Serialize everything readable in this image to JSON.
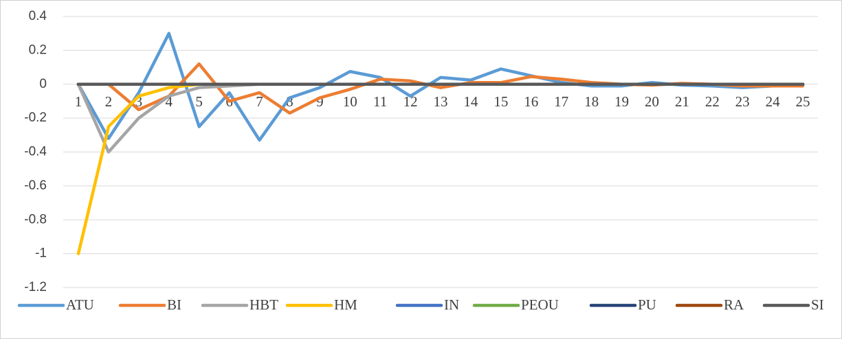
{
  "chart_data": {
    "type": "line",
    "categories": [
      "1",
      "2",
      "3",
      "4",
      "5",
      "6",
      "7",
      "8",
      "9",
      "10",
      "11",
      "12",
      "13",
      "14",
      "15",
      "16",
      "17",
      "18",
      "19",
      "20",
      "21",
      "22",
      "23",
      "24",
      "25"
    ],
    "series": [
      {
        "name": "ATU",
        "color": "#5b9bd5",
        "values": [
          0,
          -0.32,
          -0.05,
          0.3,
          -0.25,
          -0.05,
          -0.33,
          -0.08,
          -0.02,
          0.075,
          0.04,
          -0.07,
          0.04,
          0.025,
          0.09,
          0.05,
          0.01,
          -0.01,
          -0.01,
          0.01,
          -0.005,
          -0.01,
          -0.02,
          -0.01,
          -0.005
        ]
      },
      {
        "name": "BI",
        "color": "#ed7d31",
        "values": [
          0,
          0,
          -0.15,
          -0.07,
          0.12,
          -0.1,
          -0.05,
          -0.17,
          -0.08,
          -0.03,
          0.03,
          0.02,
          -0.02,
          0.01,
          0.01,
          0.045,
          0.03,
          0.01,
          0,
          -0.005,
          0.005,
          0,
          -0.01,
          -0.01,
          -0.01
        ]
      },
      {
        "name": "HBT",
        "color": "#a5a5a5",
        "values": [
          0,
          -0.4,
          -0.2,
          -0.07,
          -0.02,
          -0.01,
          0,
          0,
          0,
          0,
          0,
          0,
          0,
          0,
          0,
          0,
          0,
          0,
          0,
          0,
          0,
          0,
          0,
          0,
          0
        ]
      },
      {
        "name": "HM",
        "color": "#ffc000",
        "values": [
          -1,
          -0.25,
          -0.07,
          -0.02,
          0,
          0,
          0,
          0,
          0,
          0,
          0,
          0,
          0,
          0,
          0,
          0,
          0,
          0,
          0,
          0,
          0,
          0,
          0,
          0,
          0
        ]
      },
      {
        "name": "IN",
        "color": "#4472c4",
        "values": [
          0,
          0,
          0,
          0,
          0,
          0,
          0,
          0,
          0,
          0,
          0,
          0,
          0,
          0,
          0,
          0,
          0,
          0,
          0,
          0,
          0,
          0,
          0,
          0,
          0
        ]
      },
      {
        "name": "PEOU",
        "color": "#70ad47",
        "values": [
          0,
          0,
          0,
          0,
          0,
          0,
          0,
          0,
          0,
          0,
          0,
          0,
          0,
          0,
          0,
          0,
          0,
          0,
          0,
          0,
          0,
          0,
          0,
          0,
          0
        ]
      },
      {
        "name": "PU",
        "color": "#264478",
        "values": [
          0,
          0,
          0,
          0,
          0,
          0,
          0,
          0,
          0,
          0,
          0,
          0,
          0,
          0,
          0,
          0,
          0,
          0,
          0,
          0,
          0,
          0,
          0,
          0,
          0
        ]
      },
      {
        "name": "RA",
        "color": "#9e480e",
        "values": [
          0,
          0,
          0,
          0,
          0,
          0,
          0,
          0,
          0,
          0,
          0,
          0,
          0,
          0,
          0,
          0,
          0,
          0,
          0,
          0,
          0,
          0,
          0,
          0,
          0
        ]
      },
      {
        "name": "SI",
        "color": "#595959",
        "values": [
          0,
          0,
          0,
          0,
          0,
          0,
          0,
          0,
          0,
          0,
          0,
          0,
          0,
          0,
          0,
          0,
          0,
          0,
          0,
          0,
          0,
          0,
          0,
          0,
          0
        ]
      }
    ],
    "ylim": [
      -1.2,
      0.4
    ],
    "yticks": [
      0.4,
      0.2,
      0,
      -0.2,
      -0.4,
      -0.6,
      -0.8,
      -1,
      -1.2
    ],
    "grid": true,
    "legend": "bottom"
  }
}
